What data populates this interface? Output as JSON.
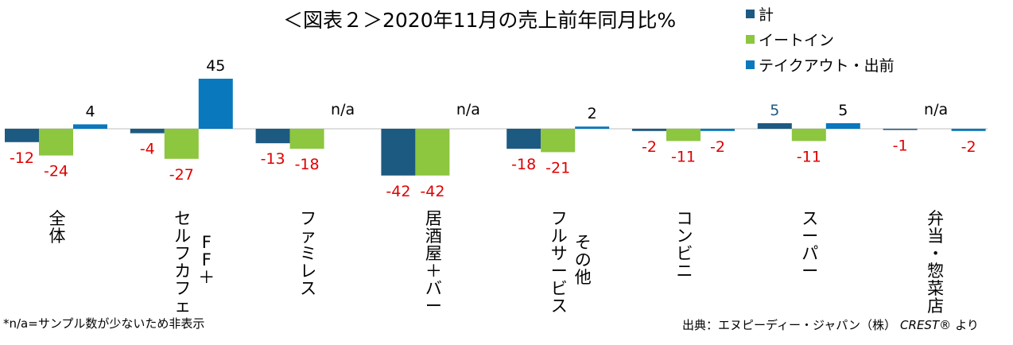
{
  "chart_data": {
    "type": "bar",
    "title": "＜図表２＞2020年11月の売上前年同月比%",
    "categories": [
      "全体",
      "セルフカフェ",
      "ファミレス",
      "居酒屋+バー",
      "フルサービス",
      "コンビニ",
      "スーパー",
      "弁当・惣菜店"
    ],
    "category_sublabels": [
      "",
      "FF+",
      "",
      "",
      "その他",
      "",
      "",
      ""
    ],
    "series": [
      {
        "name": "計",
        "color": "#1d5a82",
        "values": [
          -12,
          -4,
          -13,
          -42,
          -18,
          -2,
          5,
          -1
        ]
      },
      {
        "name": "イートイン",
        "color": "#8dc63f",
        "values": [
          -24,
          -27,
          -18,
          -42,
          -21,
          -11,
          -11,
          null
        ]
      },
      {
        "name": "テイクアウト・出前",
        "color": "#0a78bd",
        "values": [
          4,
          45,
          null,
          null,
          2,
          -2,
          5,
          -2
        ]
      }
    ],
    "na_label": "n/a",
    "legend": "top-right",
    "grid": false,
    "ylim": [
      -45,
      50
    ],
    "xlabel": "",
    "ylabel": ""
  },
  "footnote": "*n/a=サンプル数が少ないため非表示",
  "source_prefix": "出典：エヌピーディー・ジャパン（株）",
  "source_brand": "CREST®",
  "source_suffix": "より",
  "colors": {
    "negative_label": "#e00000",
    "positive_label": "#000000"
  }
}
